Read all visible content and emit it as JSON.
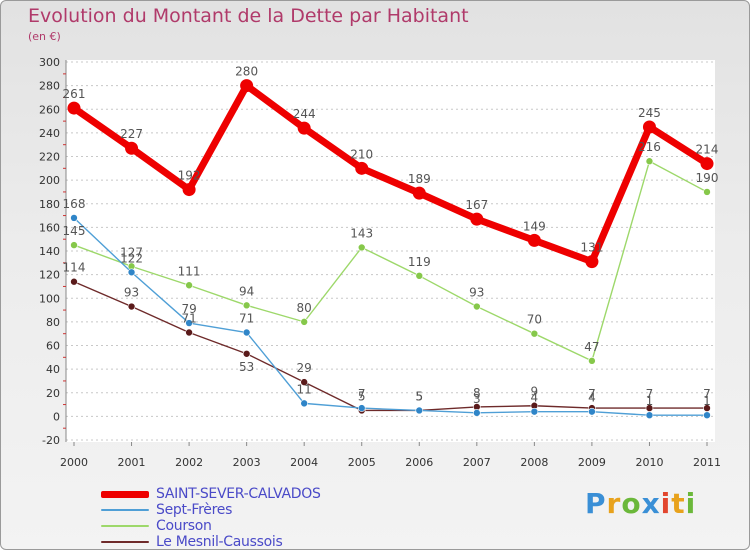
{
  "title": "Evolution du Montant de la Dette par Habitant",
  "subtitle": "(en €)",
  "logo": "Proxiti",
  "colors": {
    "axis_text": "#333333",
    "grid": "#c8c8c8",
    "label": "#555555"
  },
  "chart_data": {
    "type": "line",
    "x": [
      "2000",
      "2001",
      "2002",
      "2003",
      "2004",
      "2005",
      "2006",
      "2007",
      "2008",
      "2009",
      "2010",
      "2011"
    ],
    "ylim": [
      -20,
      300
    ],
    "yticks": [
      -20,
      0,
      20,
      40,
      60,
      80,
      100,
      120,
      140,
      160,
      180,
      200,
      220,
      240,
      260,
      280,
      300
    ],
    "grid": true,
    "legend_position": "bottom-left",
    "series": [
      {
        "name": "SAINT-SEVER-CALVADOS",
        "color": "#ee0000",
        "values": [
          261,
          227,
          192,
          280,
          244,
          210,
          189,
          167,
          149,
          131,
          245,
          214
        ],
        "labels": [
          "261",
          "227",
          "192",
          "280",
          "244",
          "210",
          "189",
          "167",
          "149",
          "131",
          "245",
          "214"
        ]
      },
      {
        "name": "Sept-Frères",
        "color": "#4f9fd6",
        "marker": "#2f85c8",
        "values": [
          168,
          122,
          79,
          71,
          11,
          7,
          5,
          3,
          4,
          4,
          1,
          1
        ],
        "labels": [
          "168",
          "122",
          "79",
          "71",
          "11",
          "7",
          "5",
          "3",
          "4",
          "4",
          "1",
          "1"
        ]
      },
      {
        "name": "Courson",
        "color": "#9dd86a",
        "marker": "#86c84a",
        "values": [
          145,
          127,
          111,
          94,
          80,
          143,
          119,
          93,
          70,
          47,
          216,
          190
        ],
        "labels": [
          "145",
          "127",
          "111",
          "94",
          "80",
          "143",
          "119",
          "93",
          "70",
          "47",
          "216",
          "190"
        ]
      },
      {
        "name": "Le Mesnil-Caussois",
        "color": "#6e2a2a",
        "marker": "#5a1a1a",
        "values": [
          114,
          93,
          71,
          53,
          29,
          5,
          5,
          8,
          9,
          7,
          7,
          7
        ],
        "labels": [
          "114",
          "93",
          "71",
          "53",
          "29",
          "5",
          "5",
          "8",
          "9",
          "7",
          "7",
          "7"
        ]
      }
    ]
  }
}
